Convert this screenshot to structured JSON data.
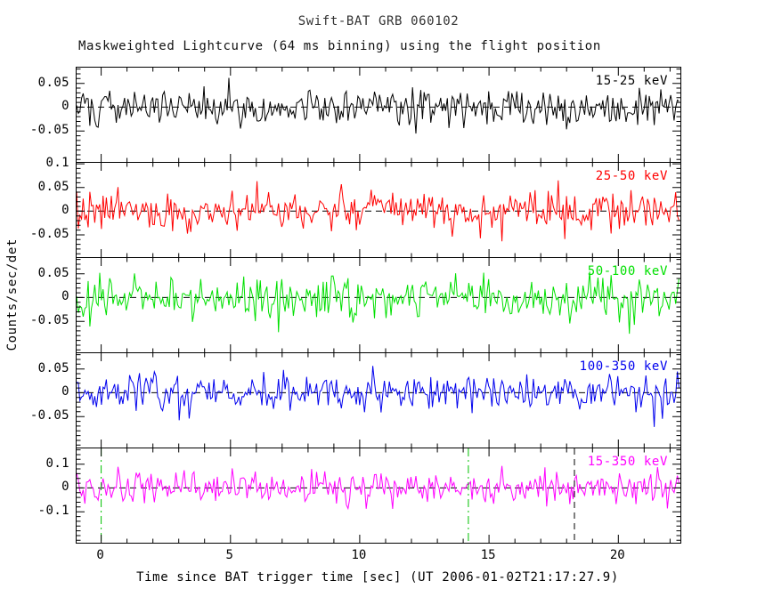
{
  "header": {
    "title": "Swift-BAT GRB 060102",
    "subtitle": "Maskweighted Lightcurve (64 ms binning) using the flight position"
  },
  "axes": {
    "y_label": "Counts/sec/det",
    "x_label": "Time since BAT trigger time [sec] (UT 2006-01-02T21:17:27.9)"
  },
  "chart_data": {
    "type": "line",
    "data_character": "mask-weighted count-rate traces fluctuating as noise about zero in every energy band",
    "x_range": [
      -0.95,
      22.4
    ],
    "bin_seconds": 0.064,
    "x_ticks": [
      0,
      5,
      10,
      15,
      20
    ],
    "x_tick_labels": [
      "0",
      "5",
      "10",
      "15",
      "20"
    ],
    "x_minor_step": 1,
    "zero_line": {
      "value": 0,
      "style": "dashed",
      "color": "#000000"
    },
    "panels": [
      {
        "band": "15-25 keV",
        "color": "#000000",
        "ylim": [
          -0.115,
          0.083
        ],
        "yticks": [
          {
            "v": 0.05,
            "label": "0.05"
          },
          {
            "v": 0,
            "label": "0"
          },
          {
            "v": -0.05,
            "label": "-0.05"
          }
        ],
        "y_minor_step": 0.01,
        "noise_sigma": 0.019,
        "seed": 101
      },
      {
        "band": "25-50 keV",
        "color": "#ff0000",
        "ylim": [
          -0.097,
          0.102
        ],
        "yticks": [
          {
            "v": 0.1,
            "label": "0.1"
          },
          {
            "v": 0.05,
            "label": "0.05"
          },
          {
            "v": 0,
            "label": "0"
          },
          {
            "v": -0.05,
            "label": "-0.05"
          }
        ],
        "y_minor_step": 0.01,
        "noise_sigma": 0.021,
        "seed": 202
      },
      {
        "band": "50-100 keV",
        "color": "#00e000",
        "ylim": [
          -0.115,
          0.083
        ],
        "yticks": [
          {
            "v": 0.05,
            "label": "0.05"
          },
          {
            "v": 0,
            "label": "0"
          },
          {
            "v": -0.05,
            "label": "-0.05"
          }
        ],
        "y_minor_step": 0.01,
        "noise_sigma": 0.022,
        "seed": 303
      },
      {
        "band": "100-350 keV",
        "color": "#0000ee",
        "ylim": [
          -0.115,
          0.083
        ],
        "yticks": [
          {
            "v": 0.05,
            "label": "0.05"
          },
          {
            "v": 0,
            "label": "0"
          },
          {
            "v": -0.05,
            "label": "-0.05"
          }
        ],
        "y_minor_step": 0.01,
        "noise_sigma": 0.019,
        "seed": 404
      },
      {
        "band": "15-350 keV",
        "color": "#ff00ff",
        "ylim": [
          -0.23,
          0.166
        ],
        "yticks": [
          {
            "v": 0.1,
            "label": "0.1"
          },
          {
            "v": 0,
            "label": "0"
          },
          {
            "v": -0.1,
            "label": "-0.1"
          }
        ],
        "y_minor_step": 0.02,
        "noise_sigma": 0.036,
        "seed": 505
      }
    ],
    "markers": [
      {
        "panel": 4,
        "x": 0,
        "color": "#00c000",
        "style": "dashdot"
      },
      {
        "panel": 4,
        "x": 14.2,
        "color": "#00c000",
        "style": "dashdot"
      },
      {
        "panel": 4,
        "x": 18.3,
        "color": "#000000",
        "style": "dashed"
      }
    ]
  }
}
